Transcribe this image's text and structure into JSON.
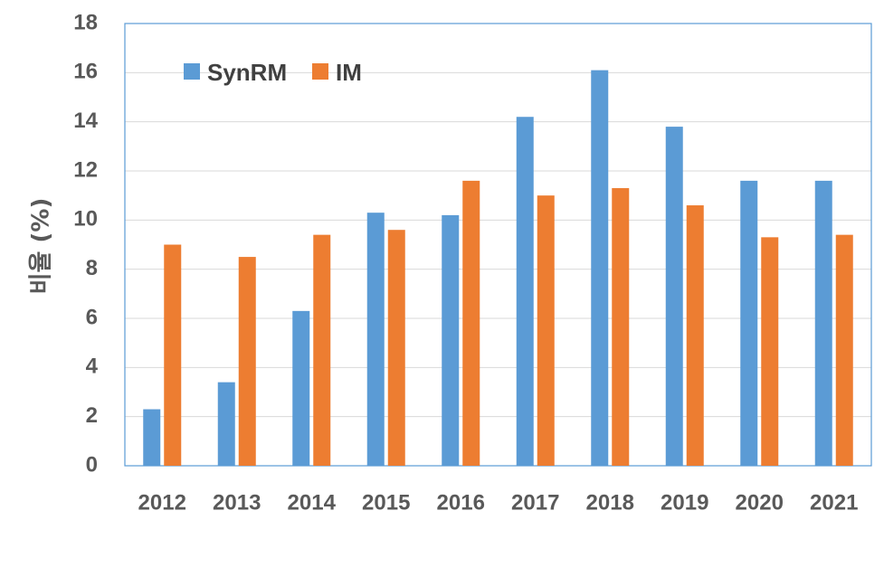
{
  "chart_data": {
    "type": "bar",
    "title": "",
    "xlabel": "",
    "ylabel": "비율 (%)",
    "categories": [
      "2012",
      "2013",
      "2014",
      "2015",
      "2016",
      "2017",
      "2018",
      "2019",
      "2020",
      "2021"
    ],
    "series": [
      {
        "name": "SynRM",
        "color": "#5B9BD5",
        "values": [
          2.3,
          3.4,
          6.3,
          10.3,
          10.2,
          14.2,
          16.1,
          13.8,
          11.6,
          11.6
        ]
      },
      {
        "name": "IM",
        "color": "#ED7D31",
        "values": [
          9.0,
          8.5,
          9.4,
          9.6,
          11.6,
          11.0,
          11.3,
          10.6,
          9.3,
          9.4
        ]
      }
    ],
    "ylim": [
      0,
      18
    ],
    "yticks": [
      0,
      2,
      4,
      6,
      8,
      10,
      12,
      14,
      16,
      18
    ],
    "grid": true,
    "legend": "top-left"
  }
}
